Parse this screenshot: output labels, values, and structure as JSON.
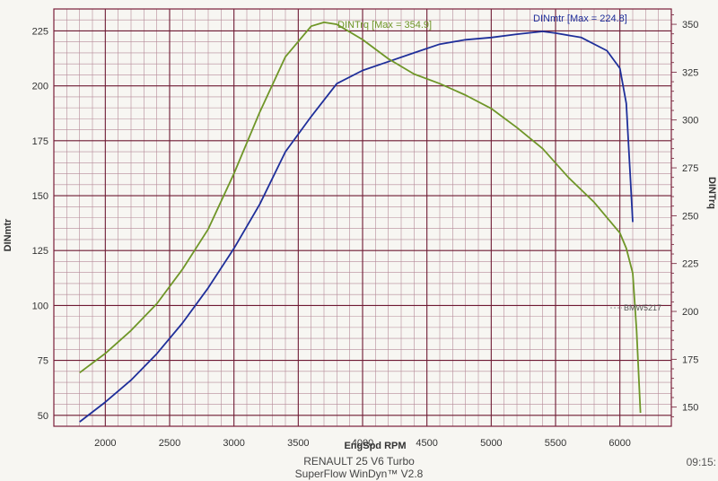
{
  "chart_data": {
    "type": "line",
    "xlabel": "EngSpd RPM",
    "ylabel_left": "DINmtr",
    "ylabel_right": "DINTrq",
    "xlim": [
      1600,
      6400
    ],
    "ylim_left": [
      45,
      235
    ],
    "ylim_right": [
      140,
      358
    ],
    "x_ticks": [
      2000,
      2500,
      3000,
      3500,
      4000,
      4500,
      5000,
      5500,
      6000
    ],
    "y_left_ticks": [
      50,
      75,
      100,
      125,
      150,
      175,
      200,
      225
    ],
    "y_right_ticks": [
      150,
      175,
      200,
      225,
      250,
      275,
      300,
      325,
      350
    ],
    "grid": true,
    "series": [
      {
        "name": "DINmtr",
        "axis": "left",
        "color": "#1f2f9a",
        "annotation": "DINmtr [Max = 224.8]",
        "x": [
          1800,
          2000,
          2200,
          2400,
          2600,
          2800,
          3000,
          3200,
          3400,
          3600,
          3800,
          4000,
          4200,
          4400,
          4600,
          4800,
          5000,
          5200,
          5400,
          5500,
          5700,
          5900,
          6000,
          6050,
          6080,
          6100
        ],
        "y": [
          47,
          56,
          66,
          78,
          92,
          108,
          126,
          146,
          170,
          186,
          201,
          207,
          211,
          215,
          219,
          221,
          222,
          223.5,
          224.8,
          224,
          222,
          216,
          208,
          192,
          160,
          138
        ]
      },
      {
        "name": "DINTrq",
        "axis": "right",
        "color": "#6f9628",
        "annotation": "DINTrq [Max = 354.9]",
        "x": [
          1800,
          2000,
          2200,
          2400,
          2600,
          2800,
          3000,
          3200,
          3400,
          3600,
          3700,
          3800,
          4000,
          4200,
          4400,
          4600,
          4800,
          5000,
          5200,
          5400,
          5600,
          5800,
          6000,
          6050,
          6100,
          6130,
          6160
        ],
        "y": [
          168,
          178,
          190,
          204,
          222,
          243,
          272,
          304,
          333,
          349,
          351,
          350,
          342,
          332,
          324,
          319,
          313,
          306,
          296,
          285,
          270,
          257,
          241,
          233,
          220,
          190,
          147
        ]
      }
    ],
    "annotations": [
      "BMW5217"
    ]
  },
  "footer": {
    "line1": "RENAULT 25 V6 Turbo",
    "line2": "SuperFlow WinDyn™ V2.8",
    "time": "09:15:"
  }
}
